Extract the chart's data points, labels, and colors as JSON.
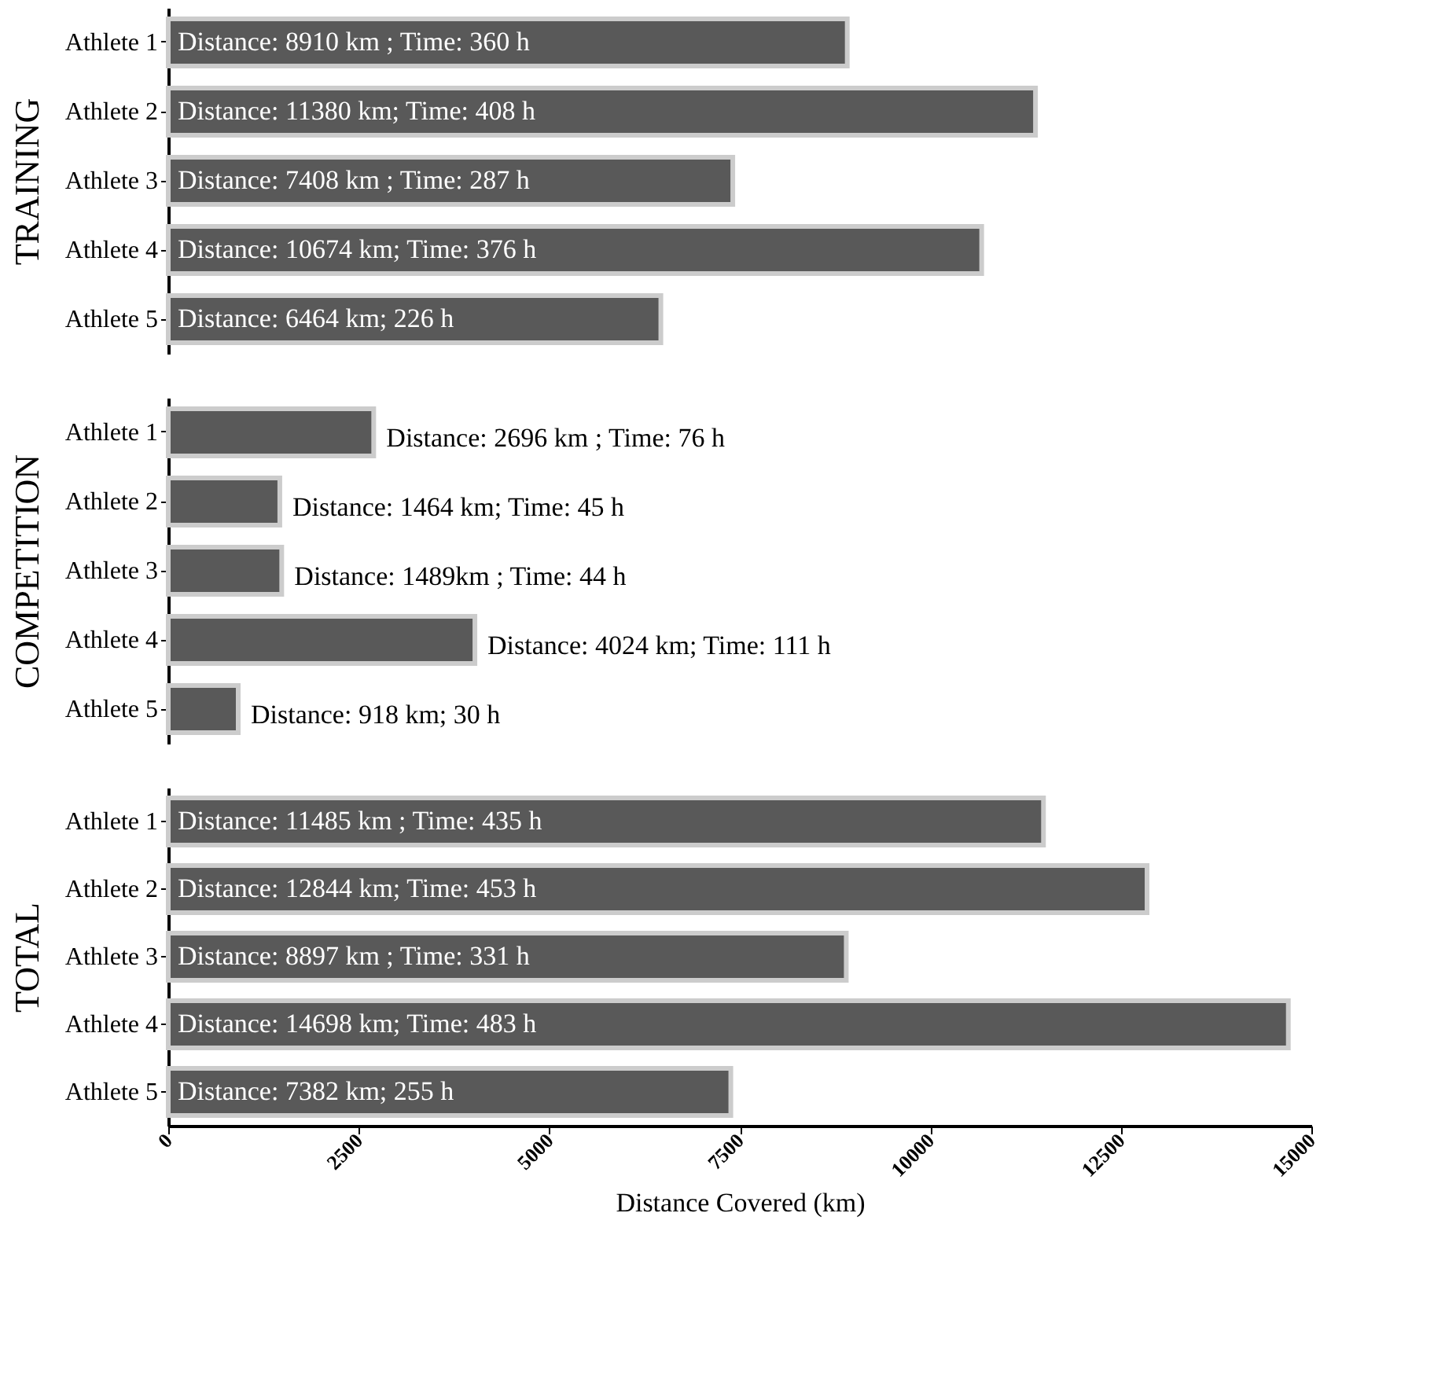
{
  "chart_data": [
    {
      "type": "bar",
      "orientation": "horizontal",
      "ylabel": "TRAINING",
      "categories": [
        "Athlete 1",
        "Athlete 2",
        "Athlete 3",
        "Athlete 4",
        "Athlete 5"
      ],
      "values": [
        8910,
        11380,
        7408,
        10674,
        6464
      ],
      "value_labels": [
        "Distance: 8910 km ; Time: 360 h",
        "Distance: 11380 km;  Time: 408 h",
        "Distance: 7408 km ; Time: 287 h",
        "Distance: 10674 km; Time: 376 h",
        "Distance: 6464 km; 226 h"
      ],
      "color": "#595959",
      "xlim": [
        0,
        15000
      ],
      "xticks": [
        0,
        2500,
        5000,
        7500,
        10000,
        12500,
        15000
      ],
      "tick_labels": "y",
      "grid": false
    },
    {
      "type": "bar",
      "orientation": "horizontal",
      "ylabel": "COMPETITION",
      "categories": [
        "Athlete 1",
        "Athlete 2",
        "Athlete 3",
        "Athlete 4",
        "Athlete 5"
      ],
      "values": [
        2696,
        1464,
        1489,
        4024,
        918
      ],
      "value_labels": [
        "Distance: 2696 km ; Time: 76 h",
        "Distance: 1464 km;  Time: 45 h",
        "Distance: 1489km ; Time: 44 h",
        "Distance: 4024 km; Time: 111 h",
        "Distance: 918 km; 30 h"
      ],
      "color": "#595959",
      "xlim": [
        0,
        15000
      ],
      "xticks": [
        0,
        2500,
        5000,
        7500,
        10000,
        12500,
        15000
      ],
      "tick_labels": "y",
      "grid": false
    },
    {
      "type": "bar",
      "orientation": "horizontal",
      "ylabel": "TOTAL",
      "xlabel": "Distance  Covered (km)",
      "categories": [
        "Athlete 1",
        "Athlete 2",
        "Athlete 3",
        "Athlete 4",
        "Athlete 5"
      ],
      "values": [
        11485,
        12844,
        8897,
        14698,
        7382
      ],
      "value_labels": [
        "Distance: 11485 km ; Time: 435 h",
        "Distance: 12844 km;  Time: 453 h",
        "Distance: 8897 km ; Time: 331 h",
        "Distance: 14698 km; Time: 483 h",
        "Distance: 7382 km; 255 h"
      ],
      "color": "#595959",
      "xlim": [
        0,
        15000
      ],
      "xticks": [
        0,
        2500,
        5000,
        7500,
        10000,
        12500,
        15000
      ],
      "grid": false
    }
  ]
}
